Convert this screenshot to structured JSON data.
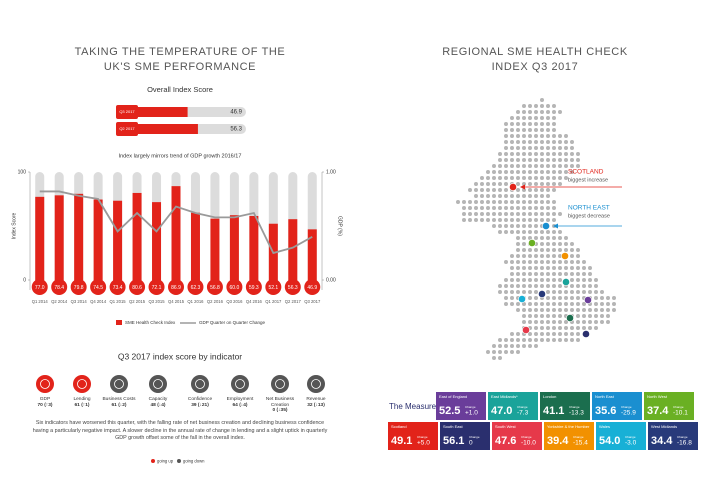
{
  "left_title_lines": [
    "TAKING THE TEMPERATURE OF THE",
    "UK'S SME PERFORMANCE"
  ],
  "overall": {
    "title": "Overall Index Score",
    "color": "#e2231a",
    "rows": [
      {
        "label": "Q3 2017",
        "value": 46.9
      },
      {
        "label": "Q2 2017",
        "value": 56.3
      }
    ]
  },
  "chart_data": {
    "type": "bar",
    "title": "Index largely mirrors trend of GDP growth 2016/17",
    "categories": [
      "Q1 2014",
      "Q2 2014",
      "Q3 2014",
      "Q4 2014",
      "Q1 2015",
      "Q2 2015",
      "Q3 2015",
      "Q4 2015",
      "Q1 2016",
      "Q2 2016",
      "Q3 2016",
      "Q4 2016",
      "Q1 2017",
      "Q2 2017",
      "Q3 2017"
    ],
    "series": [
      {
        "name": "SME Health Check Index",
        "color": "#e2231a",
        "values": [
          77.0,
          78.4,
          79.8,
          74.5,
          73.4,
          80.6,
          72.1,
          86.9,
          62.3,
          56.8,
          60.0,
          59.3,
          52.1,
          56.3,
          46.9
        ],
        "value_labels": [
          "77.0",
          "78.4",
          "79.8",
          "74.5",
          "73.4",
          "80.6",
          "72.1",
          "86.9",
          "62.3",
          "56.8",
          "60.0",
          "59.3",
          "52.1",
          "56.3",
          "46.9"
        ]
      },
      {
        "name": "GDP Quarter on Quarter Change",
        "color": "#9a9a9a",
        "type": "line",
        "axis": "y2",
        "values": [
          0.82,
          0.82,
          0.78,
          0.75,
          0.45,
          0.62,
          0.45,
          0.68,
          0.62,
          0.58,
          0.58,
          0.62,
          0.25,
          0.3,
          0.4
        ]
      }
    ],
    "ylim": [
      0,
      100
    ],
    "yticks": [
      0,
      100
    ],
    "y2lim": [
      0,
      1
    ],
    "y2ticks": [
      {
        "value": 0,
        "label": "0.00"
      },
      {
        "value": 1,
        "label": "1.00"
      }
    ],
    "ylabel": "Index Score",
    "y2label": "GDP (%)"
  },
  "indicators": {
    "title": "Q3 2017 index score by indicator",
    "items": [
      {
        "name": "GDP",
        "value": 70,
        "change": "(↑3)",
        "color": "#e2231a"
      },
      {
        "name": "Lending",
        "value": 61,
        "change": "(↑1)",
        "color": "#e2231a"
      },
      {
        "name": "Business Costs",
        "value": 61,
        "change": "(↓2)",
        "color": "#555555"
      },
      {
        "name": "Capacity",
        "value": 48,
        "change": "(↓4)",
        "color": "#555555"
      },
      {
        "name": "Confidence",
        "value": 39,
        "change": "(↓21)",
        "color": "#555555"
      },
      {
        "name": "Employment",
        "value": 64,
        "change": "(↓4)",
        "color": "#555555"
      },
      {
        "name": "Net Business Creation",
        "value": 0,
        "change": "(↓35)",
        "color": "#555555"
      },
      {
        "name": "Revenue",
        "value": 32,
        "change": "(↓13)",
        "color": "#555555"
      }
    ],
    "legend": [
      {
        "name": "going up",
        "color": "#e2231a"
      },
      {
        "name": "going down",
        "color": "#555555"
      }
    ]
  },
  "paragraph": "Six indicators have worsened this quarter, with the falling rate of net business creation and declining business confidence having a particularly negative impact. A slower decline in the annual rate of change in lending and a slight uptick in quarterly GDP growth offset some of the fall in the overall index.",
  "regional": {
    "title_lines": [
      "REGIONAL SME HEALTH CHECK",
      "INDEX Q3 2017"
    ],
    "callouts": [
      {
        "title": "SCOTLAND",
        "text": "biggest increase",
        "color": "#e2231a"
      },
      {
        "title": "NORTH EAST",
        "text": "biggest decrease",
        "color": "#1a8fd0"
      }
    ],
    "measure": "The Measure",
    "change_label": "Change",
    "regions": [
      {
        "name": "East of England",
        "value": "52.5",
        "change": "+1.0",
        "color": "#6a3d9a"
      },
      {
        "name": "East Midlands*",
        "value": "47.0",
        "change": "-7.3",
        "color": "#1aa39a"
      },
      {
        "name": "London",
        "value": "41.1",
        "change": "-13.3",
        "color": "#1b6e4e"
      },
      {
        "name": "North East",
        "value": "35.6",
        "change": "-25.9",
        "color": "#1a8fd0"
      },
      {
        "name": "North West",
        "value": "37.4",
        "change": "-10.1",
        "color": "#6ab023"
      },
      {
        "name": "Scotland",
        "value": "49.1",
        "change": "+5.0",
        "color": "#e2231a"
      },
      {
        "name": "South East",
        "value": "56.1",
        "change": "0",
        "color": "#2a2f6e"
      },
      {
        "name": "South West",
        "value": "47.6",
        "change": "-10.0",
        "color": "#e6394a"
      },
      {
        "name": "Yorkshire & the Humber",
        "value": "39.4",
        "change": "-15.4",
        "color": "#f29100"
      },
      {
        "name": "Wales",
        "value": "54.0",
        "change": "-3.0",
        "color": "#18b0d6"
      },
      {
        "name": "West Midlands",
        "value": "34.4",
        "change": "-16.8",
        "color": "#283a7a"
      }
    ]
  }
}
